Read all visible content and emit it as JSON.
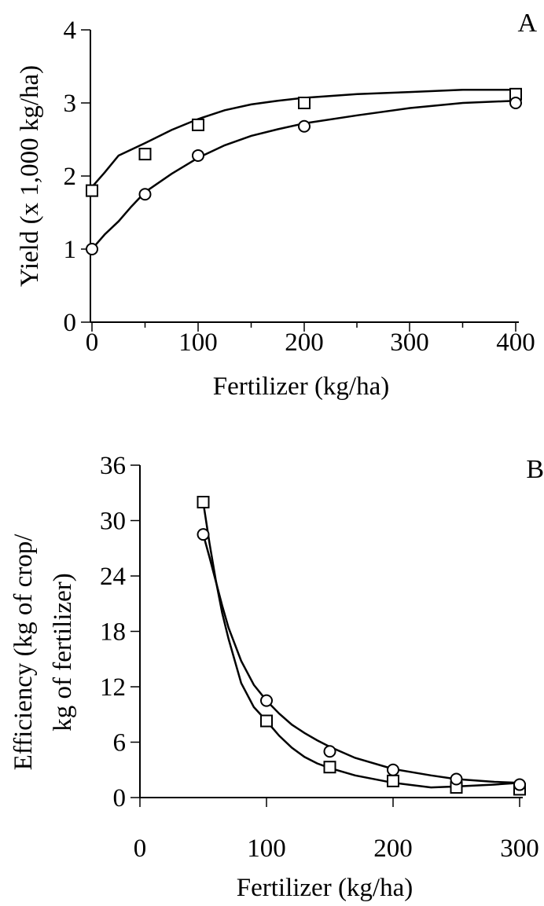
{
  "chart_data": [
    {
      "type": "scatter",
      "panel_label": "A",
      "xlabel": "Fertilizer (kg/ha)",
      "ylabel": "Yield (x 1,000 kg/ha)",
      "x_ticks": [
        "0",
        "100",
        "200",
        "300",
        "400"
      ],
      "y_ticks": [
        "0",
        "1",
        "2",
        "3",
        "4"
      ],
      "xlim": [
        0,
        400
      ],
      "ylim": [
        0,
        4
      ],
      "x_scale": [
        0,
        100,
        200,
        400
      ],
      "grid": false,
      "legend": "none",
      "series": [
        {
          "marker": "square",
          "points": [
            [
              0,
              1.8
            ],
            [
              50,
              2.3
            ],
            [
              100,
              2.7
            ],
            [
              200,
              3.0
            ],
            [
              400,
              3.12
            ]
          ],
          "curve": [
            [
              0,
              1.85
            ],
            [
              12,
              2.05
            ],
            [
              25,
              2.28
            ],
            [
              50,
              2.45
            ],
            [
              75,
              2.63
            ],
            [
              100,
              2.78
            ],
            [
              125,
              2.9
            ],
            [
              150,
              2.98
            ],
            [
              175,
              3.03
            ],
            [
              200,
              3.07
            ],
            [
              250,
              3.12
            ],
            [
              300,
              3.15
            ],
            [
              350,
              3.18
            ],
            [
              400,
              3.18
            ]
          ]
        },
        {
          "marker": "circle",
          "points": [
            [
              0,
              1.0
            ],
            [
              50,
              1.75
            ],
            [
              100,
              2.28
            ],
            [
              200,
              2.68
            ],
            [
              400,
              3.0
            ]
          ],
          "curve": [
            [
              0,
              1.0
            ],
            [
              12,
              1.2
            ],
            [
              25,
              1.38
            ],
            [
              37,
              1.58
            ],
            [
              50,
              1.78
            ],
            [
              75,
              2.03
            ],
            [
              100,
              2.25
            ],
            [
              125,
              2.42
            ],
            [
              150,
              2.55
            ],
            [
              175,
              2.64
            ],
            [
              200,
              2.72
            ],
            [
              250,
              2.83
            ],
            [
              300,
              2.93
            ],
            [
              350,
              3.0
            ],
            [
              400,
              3.03
            ]
          ]
        }
      ]
    },
    {
      "type": "scatter",
      "panel_label": "B",
      "xlabel": "Fertilizer (kg/ha)",
      "ylabel": "Efficiency (kg of crop/",
      "ylabel2": "kg of fertilizer)",
      "x_ticks": [
        "0",
        "100",
        "200",
        "300"
      ],
      "y_ticks": [
        "0",
        "6",
        "12",
        "18",
        "24",
        "30",
        "36"
      ],
      "xlim": [
        0,
        300
      ],
      "ylim": [
        0,
        36
      ],
      "grid": false,
      "legend": "none",
      "series": [
        {
          "marker": "square",
          "points": [
            [
              50,
              32
            ],
            [
              100,
              8.3
            ],
            [
              150,
              3.3
            ],
            [
              200,
              1.8
            ],
            [
              250,
              1.1
            ],
            [
              300,
              0.9
            ]
          ],
          "curve": [
            [
              50,
              32
            ],
            [
              55,
              27.5
            ],
            [
              60,
              23.5
            ],
            [
              65,
              20
            ],
            [
              70,
              17.2
            ],
            [
              80,
              12.4
            ],
            [
              90,
              9.8
            ],
            [
              100,
              8.3
            ],
            [
              110,
              6.7
            ],
            [
              120,
              5.4
            ],
            [
              130,
              4.4
            ],
            [
              140,
              3.7
            ],
            [
              150,
              3.2
            ],
            [
              170,
              2.4
            ],
            [
              200,
              1.6
            ],
            [
              230,
              1.1
            ],
            [
              250,
              1.2
            ],
            [
              280,
              1.4
            ],
            [
              300,
              1.6
            ]
          ]
        },
        {
          "marker": "circle",
          "points": [
            [
              50,
              28.5
            ],
            [
              100,
              10.5
            ],
            [
              150,
              5.0
            ],
            [
              200,
              3.0
            ],
            [
              250,
              2.0
            ],
            [
              300,
              1.4
            ]
          ],
          "curve": [
            [
              50,
              28.5
            ],
            [
              55,
              26
            ],
            [
              60,
              23.4
            ],
            [
              65,
              20.8
            ],
            [
              70,
              18.4
            ],
            [
              80,
              14.8
            ],
            [
              90,
              12.2
            ],
            [
              100,
              10.5
            ],
            [
              110,
              9.1
            ],
            [
              120,
              7.9
            ],
            [
              130,
              7.0
            ],
            [
              140,
              6.2
            ],
            [
              150,
              5.5
            ],
            [
              170,
              4.3
            ],
            [
              200,
              3.1
            ],
            [
              230,
              2.4
            ],
            [
              250,
              2.0
            ],
            [
              280,
              1.7
            ],
            [
              300,
              1.6
            ]
          ]
        }
      ]
    }
  ]
}
